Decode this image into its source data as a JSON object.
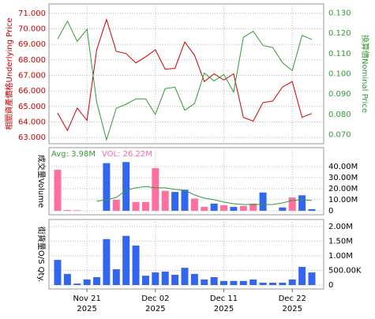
{
  "chart_data": [
    {
      "type": "line",
      "y_label": "相關資產價格Underlying Price",
      "y2_label": "換算價Nominal Price",
      "ylim": [
        62.6,
        71.6
      ],
      "yticks": [
        {
          "value": 63,
          "label": "63.000"
        },
        {
          "value": 64,
          "label": "64.000"
        },
        {
          "value": 65,
          "label": "65.000"
        },
        {
          "value": 66,
          "label": "66.000"
        },
        {
          "value": 67,
          "label": "67.000"
        },
        {
          "value": 68,
          "label": "68.000"
        },
        {
          "value": 69,
          "label": "69.000"
        },
        {
          "value": 70,
          "label": "70.000"
        },
        {
          "value": 71,
          "label": "71.000"
        }
      ],
      "y2lim": [
        0.0655,
        0.1345
      ],
      "y2ticks": [
        {
          "value": 0.07,
          "label": "0.070"
        },
        {
          "value": 0.08,
          "label": "0.080"
        },
        {
          "value": 0.09,
          "label": "0.090"
        },
        {
          "value": 0.1,
          "label": "0.100"
        },
        {
          "value": 0.11,
          "label": "0.110"
        },
        {
          "value": 0.12,
          "label": "0.120"
        },
        {
          "value": 0.13,
          "label": "0.130"
        }
      ],
      "grid": true,
      "series": [
        {
          "color": "#cc0000",
          "values": [
            64.57,
            63.45,
            64.9,
            64.1,
            68.65,
            70.6,
            68.55,
            68.4,
            67.8,
            68.2,
            68.65,
            67.4,
            67.45,
            69.15,
            68.3,
            66.6,
            67.1,
            66.7,
            67.1,
            64.3,
            64.05,
            65.25,
            65.35,
            66.25,
            66.6,
            64.3,
            64.55
          ]
        },
        {
          "color": "#339933",
          "axis": "y2",
          "values": [
            0.1172,
            0.126,
            0.116,
            0.122,
            0.086,
            0.0674,
            0.083,
            0.085,
            0.0876,
            0.0876,
            0.08,
            0.0927,
            0.0934,
            0.082,
            0.0853,
            0.1004,
            0.0965,
            0.0997,
            0.091,
            0.118,
            0.121,
            0.114,
            0.113,
            0.1055,
            0.1016,
            0.119,
            0.117
          ]
        }
      ]
    },
    {
      "type": "bar",
      "y_label": "成交量Volume",
      "annotations": [
        {
          "text": "Avg: 3.98M",
          "color": "#339933"
        },
        {
          "text": "VOL: 26.22M",
          "color": "#ff66aa"
        }
      ],
      "ylim": [
        -3600000,
        57000000
      ],
      "yticks": [
        0,
        {
          "value": 10000000,
          "label": "10.00M"
        },
        {
          "value": 20000000,
          "label": "20.00M"
        },
        {
          "value": 30000000,
          "label": "30.00M"
        },
        {
          "value": 40000000,
          "label": "40.00M"
        }
      ],
      "grid": true,
      "series": [
        {
          "type": "bar",
          "values": [
            37000000,
            700000,
            500000,
            0,
            0,
            43000000,
            10000000,
            44000000,
            8000000,
            8000000,
            38500000,
            18000000,
            17000000,
            19000000,
            11000000,
            3500000,
            6500000,
            5000000,
            3500000,
            4300000,
            6500000,
            16500000,
            0,
            3000000,
            12000000,
            14000000,
            1500000
          ],
          "colors": [
            "#ff6fa0",
            "#ff6fa0",
            "#ff6fa0",
            "#ff6fa0",
            "#ff6fa0",
            "#3366ee",
            "#ff6fa0",
            "#3366ee",
            "#ff6fa0",
            "#ff6fa0",
            "#ff6fa0",
            "#ff6fa0",
            "#3366ee",
            "#3366ee",
            "#ff6fa0",
            "#ff6fa0",
            "#3366ee",
            "#ff6fa0",
            "#3366ee",
            "#ff6fa0",
            "#ff6fa0",
            "#3366ee",
            "#3366ee",
            "#3366ee",
            "#ff6fa0",
            "#3366ee",
            "#3366ee"
          ]
        },
        {
          "type": "line",
          "color": "#339933",
          "values": [
            null,
            null,
            null,
            null,
            8600000,
            10000000,
            12000000,
            18600000,
            20700000,
            22000000,
            20700000,
            20700000,
            19300000,
            18600000,
            14300000,
            11400000,
            10000000,
            7900000,
            6400000,
            5700000,
            5700000,
            5700000,
            5700000,
            7100000,
            9300000,
            10000000,
            9300000
          ]
        }
      ]
    },
    {
      "type": "bar",
      "y_label": "街貨量O/S Qty.",
      "categories": [
        null,
        null,
        null,
        "Nov 21",
        null,
        null,
        null,
        null,
        null,
        null,
        "Dec 02",
        null,
        null,
        null,
        null,
        null,
        null,
        "Dec 11",
        null,
        null,
        null,
        null,
        null,
        null,
        "Dec 22",
        null,
        null
      ],
      "category_years": [
        null,
        null,
        null,
        "2025",
        null,
        null,
        null,
        null,
        null,
        null,
        "2025",
        null,
        null,
        null,
        null,
        null,
        null,
        "2025",
        null,
        null,
        null,
        null,
        null,
        null,
        "2025",
        null,
        null
      ],
      "ylim": [
        -135000,
        2240000
      ],
      "yticks": [
        0,
        {
          "value": 500000,
          "label": "500.00K"
        },
        {
          "value": 1000000,
          "label": "1.00M"
        },
        {
          "value": 1500000,
          "label": "1.50M"
        },
        {
          "value": 2000000,
          "label": "2.00M"
        }
      ],
      "grid": true,
      "color": "#3366ee",
      "values": [
        860000,
        380000,
        50000,
        190000,
        270000,
        1570000,
        540000,
        1680000,
        1350000,
        320000,
        430000,
        460000,
        350000,
        590000,
        380000,
        190000,
        270000,
        140000,
        140000,
        140000,
        190000,
        80000,
        80000,
        80000,
        190000,
        620000,
        430000
      ]
    }
  ]
}
